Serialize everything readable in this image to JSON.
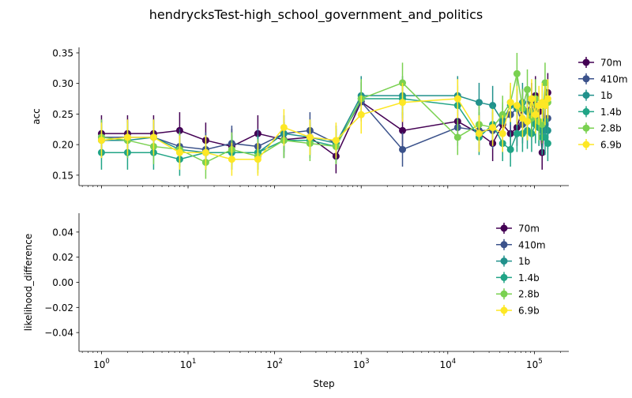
{
  "figure": {
    "suptitle": "hendrycksTest-high_school_government_and_politics"
  },
  "series_colors": [
    "#440154",
    "#3b528b",
    "#21918c",
    "#20a486",
    "#7ad151",
    "#fde725"
  ],
  "chart_data": [
    {
      "type": "line",
      "title": "",
      "ylabel": "acc",
      "xlabel": "",
      "xscale": "log",
      "xlim": [
        0.55,
        250000
      ],
      "ylim": [
        0.133,
        0.359
      ],
      "yticks": [
        "0.15",
        "0.20",
        "0.25",
        "0.30",
        "0.35"
      ],
      "ytick_values": [
        0.15,
        0.2,
        0.25,
        0.3,
        0.35
      ],
      "xticks": [
        "10^0",
        "10^1",
        "10^2",
        "10^3",
        "10^4",
        "10^5"
      ],
      "xtick_values": [
        1,
        10,
        100,
        1000,
        10000,
        100000
      ],
      "show_xtick_labels": false,
      "error_bars": true,
      "grid": false,
      "legend": "outside-right",
      "x": [
        1,
        2,
        4,
        8,
        16,
        32,
        64,
        128,
        256,
        512,
        1000,
        3000,
        13000,
        23000,
        33000,
        43000,
        53000,
        63000,
        73000,
        83000,
        93000,
        103000,
        113000,
        123000,
        133000,
        143000
      ],
      "series": [
        {
          "name": "70m",
          "values": [
            0.218,
            0.218,
            0.218,
            0.223,
            0.207,
            0.197,
            0.218,
            0.208,
            0.212,
            0.181,
            0.27,
            0.223,
            0.238,
            0.218,
            0.202,
            0.233,
            0.218,
            0.228,
            0.259,
            0.254,
            0.269,
            0.28,
            0.254,
            0.187,
            0.264,
            0.285
          ],
          "errors": [
            0.03,
            0.03,
            0.03,
            0.03,
            0.029,
            0.029,
            0.03,
            0.029,
            0.029,
            0.028,
            0.032,
            0.03,
            0.031,
            0.03,
            0.029,
            0.031,
            0.03,
            0.03,
            0.032,
            0.031,
            0.032,
            0.032,
            0.031,
            0.028,
            0.032,
            0.032
          ]
        },
        {
          "name": "410m",
          "values": [
            0.212,
            0.212,
            0.212,
            0.197,
            0.192,
            0.202,
            0.197,
            0.218,
            0.223,
            0.202,
            0.27,
            0.192,
            0.228,
            0.223,
            0.223,
            0.238,
            0.249,
            0.259,
            0.233,
            0.238,
            0.254,
            0.264,
            0.228,
            0.223,
            0.233,
            0.243
          ],
          "errors": [
            0.029,
            0.029,
            0.029,
            0.029,
            0.028,
            0.029,
            0.029,
            0.03,
            0.03,
            0.029,
            0.032,
            0.028,
            0.03,
            0.03,
            0.03,
            0.031,
            0.031,
            0.032,
            0.031,
            0.031,
            0.031,
            0.032,
            0.03,
            0.03,
            0.031,
            0.031
          ]
        },
        {
          "name": "1b",
          "values": [
            0.207,
            0.207,
            0.212,
            0.192,
            0.187,
            0.187,
            0.187,
            0.218,
            0.212,
            0.202,
            0.28,
            0.28,
            0.28,
            0.269,
            0.264,
            0.238,
            0.264,
            0.259,
            0.269,
            0.254,
            0.243,
            0.238,
            0.228,
            0.223,
            0.238,
            0.223
          ],
          "errors": [
            0.029,
            0.029,
            0.029,
            0.028,
            0.028,
            0.028,
            0.028,
            0.03,
            0.029,
            0.029,
            0.032,
            0.032,
            0.032,
            0.032,
            0.032,
            0.031,
            0.032,
            0.032,
            0.032,
            0.031,
            0.031,
            0.031,
            0.03,
            0.03,
            0.031,
            0.03
          ]
        },
        {
          "name": "1.4b",
          "values": [
            0.187,
            0.187,
            0.187,
            0.176,
            0.187,
            0.187,
            0.187,
            0.207,
            0.207,
            0.197,
            0.275,
            0.275,
            0.264,
            0.212,
            0.233,
            0.202,
            0.192,
            0.218,
            0.218,
            0.223,
            0.218,
            0.233,
            0.228,
            0.212,
            0.212,
            0.202
          ],
          "errors": [
            0.028,
            0.028,
            0.028,
            0.027,
            0.028,
            0.028,
            0.028,
            0.029,
            0.029,
            0.029,
            0.032,
            0.032,
            0.032,
            0.029,
            0.031,
            0.029,
            0.028,
            0.03,
            0.03,
            0.03,
            0.03,
            0.031,
            0.03,
            0.029,
            0.029,
            0.029
          ]
        },
        {
          "name": "2.8b",
          "values": [
            0.212,
            0.207,
            0.197,
            0.192,
            0.171,
            0.192,
            0.181,
            0.207,
            0.202,
            0.197,
            0.275,
            0.301,
            0.212,
            0.233,
            0.228,
            0.249,
            0.269,
            0.316,
            0.259,
            0.29,
            0.243,
            0.275,
            0.238,
            0.233,
            0.301,
            0.269
          ],
          "errors": [
            0.029,
            0.029,
            0.029,
            0.028,
            0.027,
            0.028,
            0.028,
            0.029,
            0.029,
            0.029,
            0.032,
            0.033,
            0.029,
            0.031,
            0.03,
            0.031,
            0.032,
            0.034,
            0.032,
            0.033,
            0.031,
            0.032,
            0.031,
            0.031,
            0.033,
            0.032
          ]
        },
        {
          "name": "6.9b",
          "values": [
            0.207,
            0.212,
            0.212,
            0.187,
            0.187,
            0.176,
            0.176,
            0.228,
            0.212,
            0.207,
            0.249,
            0.269,
            0.275,
            0.218,
            0.228,
            0.218,
            0.269,
            0.264,
            0.243,
            0.238,
            0.275,
            0.249,
            0.264,
            0.269,
            0.264,
            0.275
          ],
          "errors": [
            0.029,
            0.029,
            0.029,
            0.028,
            0.028,
            0.027,
            0.027,
            0.03,
            0.029,
            0.029,
            0.031,
            0.032,
            0.032,
            0.03,
            0.03,
            0.03,
            0.032,
            0.032,
            0.031,
            0.031,
            0.032,
            0.031,
            0.032,
            0.032,
            0.032,
            0.032
          ]
        }
      ]
    },
    {
      "type": "line",
      "title": "",
      "ylabel": "likelihood_difference",
      "xlabel": "Step",
      "xscale": "log",
      "xlim": [
        0.55,
        250000
      ],
      "ylim": [
        -0.055,
        0.055
      ],
      "yticks": [
        "−0.04",
        "−0.02",
        "0.00",
        "0.02",
        "0.04"
      ],
      "ytick_values": [
        -0.04,
        -0.02,
        0.0,
        0.02,
        0.04
      ],
      "xticks": [
        "10^0",
        "10^1",
        "10^2",
        "10^3",
        "10^4",
        "10^5"
      ],
      "xtick_values": [
        1,
        10,
        100,
        1000,
        10000,
        100000
      ],
      "show_xtick_labels": true,
      "grid": false,
      "legend": "upper-right",
      "series": [
        {
          "name": "70m",
          "values": []
        },
        {
          "name": "410m",
          "values": []
        },
        {
          "name": "1b",
          "values": []
        },
        {
          "name": "1.4b",
          "values": []
        },
        {
          "name": "2.8b",
          "values": []
        },
        {
          "name": "6.9b",
          "values": []
        }
      ]
    }
  ]
}
